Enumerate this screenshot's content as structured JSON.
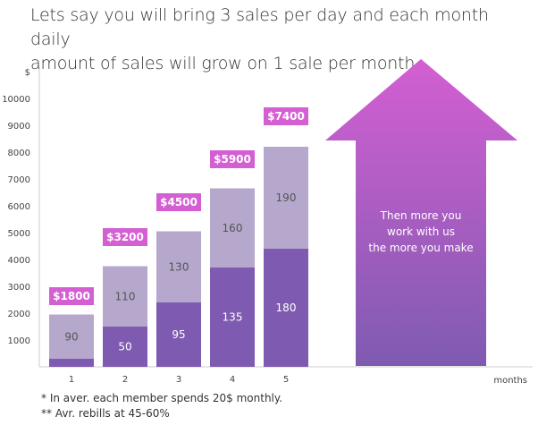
{
  "header": {
    "title_line1": "Lets say you will bring 3 sales per day and each month daily",
    "title_line2": "amount of sales will grow on 1 sale per month."
  },
  "footnotes": {
    "line1": "* In aver. each member spends 20$ monthly.",
    "line2": "** Avr. rebills at 45-60%"
  },
  "arrow": {
    "line1": "Then more you",
    "line2": "work with us",
    "line3": "the more you make"
  },
  "chart_data": {
    "type": "bar",
    "title": "",
    "xlabel": "months",
    "ylabel": "$",
    "ylim": [
      0,
      11000
    ],
    "yticks": [
      1000,
      2000,
      3000,
      4000,
      5000,
      6000,
      7000,
      8000,
      9000,
      10000
    ],
    "categories": [
      "1",
      "2",
      "3",
      "4",
      "5"
    ],
    "series": [
      {
        "values": [
          300,
          1500,
          2400,
          3700,
          4400
        ],
        "labels": [
          "",
          "50",
          "95",
          "135",
          "180"
        ],
        "color": "#7e5bb0"
      },
      {
        "values": [
          1650,
          2250,
          2650,
          2950,
          3800
        ],
        "labels": [
          "90",
          "110",
          "130",
          "160",
          "190"
        ],
        "color": "#b5a8cc"
      }
    ],
    "totals": [
      {
        "value": 2300,
        "label": "$1800"
      },
      {
        "value": 4500,
        "label": "$3200"
      },
      {
        "value": 5800,
        "label": "$4500"
      },
      {
        "value": 7400,
        "label": "$5900"
      },
      {
        "value": 9000,
        "label": "$7400"
      }
    ],
    "total_color": "#d45fd3",
    "arrow_colors": [
      "#d45fd3",
      "#7e5bb0"
    ],
    "grid": false
  }
}
